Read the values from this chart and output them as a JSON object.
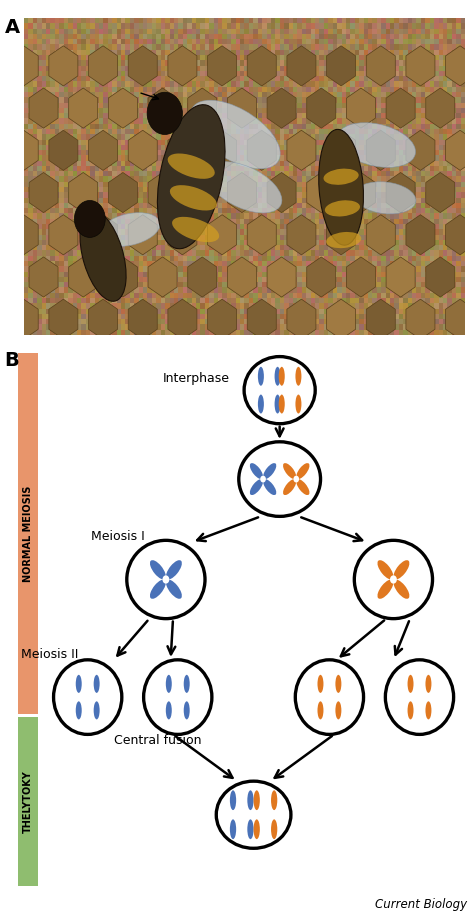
{
  "bg_color": "#ffffff",
  "blue": "#4a72b8",
  "orange": "#e07820",
  "black": "#1a1a1a",
  "sidebar_orange": "#e8956b",
  "sidebar_green": "#8fbd6f",
  "label_A": "A",
  "label_B": "B",
  "normal_meiosis_label": "NORMAL MEIOSIS",
  "thelytoky_label": "THELYTOKY",
  "interphase_label": "Interphase",
  "meiosis1_label": "Meiosis I",
  "meiosis2_label": "Meiosis II",
  "central_fusion_label": "Central fusion",
  "current_biology_label": "Current Biology",
  "fig_width": 4.74,
  "fig_height": 9.18,
  "photo_bg_colors": [
    "#8b7355",
    "#7a6245",
    "#9c8060",
    "#6b5a3e",
    "#b0956e",
    "#c8a97a",
    "#a08060",
    "#d4b896",
    "#5e4a2e"
  ],
  "photo_bee_colors": [
    "#3a2a1a",
    "#4a3520",
    "#8a7040",
    "#f5c842",
    "#e8b830"
  ],
  "photo_wing_color": "#c8d8e8"
}
